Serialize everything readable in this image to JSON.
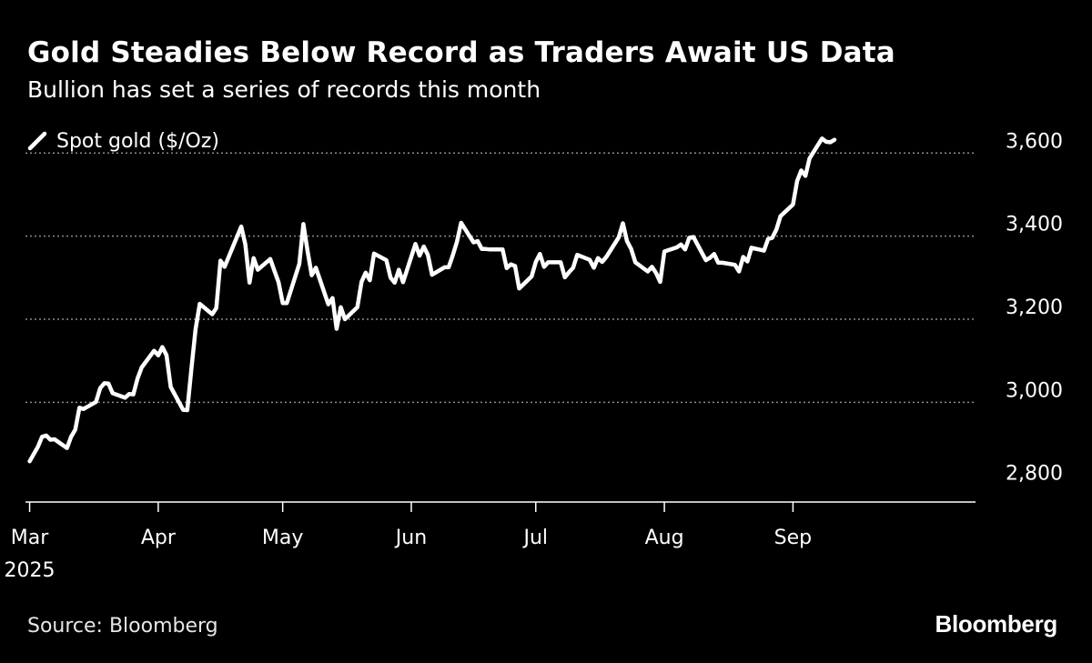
{
  "header": {
    "title": "Gold Steadies Below Record as Traders Await US Data",
    "subtitle": "Bullion has set a series of records this month"
  },
  "footer": {
    "source": "Source: Bloomberg",
    "brand": "Bloomberg"
  },
  "colors": {
    "background": "#000000",
    "line": "#ffffff",
    "grid": "#8c8c8c",
    "text": "#ffffff"
  },
  "chart_data": {
    "type": "line",
    "title": "Gold Steadies Below Record as Traders Await US Data",
    "subtitle": "Bullion has set a series of records this month",
    "legend": "top-left",
    "grid": true,
    "y_axis_side": "right",
    "ylim": [
      2760,
      3640
    ],
    "y_ticks": [
      {
        "value": 2800,
        "label": "2,800"
      },
      {
        "value": 3000,
        "label": "3,000"
      },
      {
        "value": 3200,
        "label": "3,200"
      },
      {
        "value": 3400,
        "label": "3,400"
      },
      {
        "value": 3600,
        "label": "3,600"
      }
    ],
    "gridlines": [
      3000,
      3200,
      3400,
      3600
    ],
    "xlim": [
      "2025-02-28",
      "2025-10-15"
    ],
    "x_ticks": [
      {
        "date": "2025-03-01",
        "label": "Mar",
        "sublabel": "2025"
      },
      {
        "date": "2025-04-01",
        "label": "Apr"
      },
      {
        "date": "2025-05-01",
        "label": "May"
      },
      {
        "date": "2025-06-01",
        "label": "Jun"
      },
      {
        "date": "2025-07-01",
        "label": "Jul"
      },
      {
        "date": "2025-08-01",
        "label": "Aug"
      },
      {
        "date": "2025-09-01",
        "label": "Sep"
      }
    ],
    "series": [
      {
        "name": "Spot gold ($/Oz)",
        "color": "#ffffff",
        "points": [
          [
            "2025-03-01",
            2858
          ],
          [
            "2025-03-03",
            2893
          ],
          [
            "2025-03-04",
            2917
          ],
          [
            "2025-03-05",
            2920
          ],
          [
            "2025-03-06",
            2910
          ],
          [
            "2025-03-07",
            2911
          ],
          [
            "2025-03-10",
            2890
          ],
          [
            "2025-03-11",
            2917
          ],
          [
            "2025-03-12",
            2934
          ],
          [
            "2025-03-13",
            2987
          ],
          [
            "2025-03-14",
            2984
          ],
          [
            "2025-03-17",
            3001
          ],
          [
            "2025-03-18",
            3034
          ],
          [
            "2025-03-19",
            3046
          ],
          [
            "2025-03-20",
            3045
          ],
          [
            "2025-03-21",
            3022
          ],
          [
            "2025-03-24",
            3011
          ],
          [
            "2025-03-25",
            3020
          ],
          [
            "2025-03-26",
            3019
          ],
          [
            "2025-03-27",
            3057
          ],
          [
            "2025-03-28",
            3084
          ],
          [
            "2025-03-31",
            3124
          ],
          [
            "2025-04-01",
            3113
          ],
          [
            "2025-04-02",
            3133
          ],
          [
            "2025-04-03",
            3113
          ],
          [
            "2025-04-04",
            3037
          ],
          [
            "2025-04-07",
            2982
          ],
          [
            "2025-04-08",
            2981
          ],
          [
            "2025-04-09",
            3082
          ],
          [
            "2025-04-10",
            3176
          ],
          [
            "2025-04-11",
            3237
          ],
          [
            "2025-04-14",
            3212
          ],
          [
            "2025-04-15",
            3227
          ],
          [
            "2025-04-16",
            3341
          ],
          [
            "2025-04-17",
            3326
          ],
          [
            "2025-04-21",
            3423
          ],
          [
            "2025-04-22",
            3380
          ],
          [
            "2025-04-23",
            3288
          ],
          [
            "2025-04-24",
            3347
          ],
          [
            "2025-04-25",
            3319
          ],
          [
            "2025-04-28",
            3345
          ],
          [
            "2025-04-29",
            3317
          ],
          [
            "2025-04-30",
            3289
          ],
          [
            "2025-05-01",
            3239
          ],
          [
            "2025-05-02",
            3239
          ],
          [
            "2025-05-05",
            3333
          ],
          [
            "2025-05-06",
            3429
          ],
          [
            "2025-05-07",
            3364
          ],
          [
            "2025-05-08",
            3306
          ],
          [
            "2025-05-09",
            3324
          ],
          [
            "2025-05-12",
            3236
          ],
          [
            "2025-05-13",
            3251
          ],
          [
            "2025-05-14",
            3177
          ],
          [
            "2025-05-15",
            3229
          ],
          [
            "2025-05-16",
            3200
          ],
          [
            "2025-05-19",
            3229
          ],
          [
            "2025-05-20",
            3290
          ],
          [
            "2025-05-21",
            3312
          ],
          [
            "2025-05-22",
            3294
          ],
          [
            "2025-05-23",
            3358
          ],
          [
            "2025-05-26",
            3342
          ],
          [
            "2025-05-27",
            3300
          ],
          [
            "2025-05-28",
            3288
          ],
          [
            "2025-05-29",
            3319
          ],
          [
            "2025-05-30",
            3289
          ],
          [
            "2025-06-02",
            3381
          ],
          [
            "2025-06-03",
            3353
          ],
          [
            "2025-06-04",
            3375
          ],
          [
            "2025-06-05",
            3355
          ],
          [
            "2025-06-06",
            3307
          ],
          [
            "2025-06-09",
            3325
          ],
          [
            "2025-06-10",
            3325
          ],
          [
            "2025-06-11",
            3354
          ],
          [
            "2025-06-12",
            3386
          ],
          [
            "2025-06-13",
            3432
          ],
          [
            "2025-06-16",
            3385
          ],
          [
            "2025-06-17",
            3388
          ],
          [
            "2025-06-18",
            3369
          ],
          [
            "2025-06-19",
            3369
          ],
          [
            "2025-06-20",
            3368
          ],
          [
            "2025-06-23",
            3368
          ],
          [
            "2025-06-24",
            3323
          ],
          [
            "2025-06-25",
            3332
          ],
          [
            "2025-06-26",
            3328
          ],
          [
            "2025-06-27",
            3274
          ],
          [
            "2025-06-30",
            3303
          ],
          [
            "2025-07-01",
            3338
          ],
          [
            "2025-07-02",
            3357
          ],
          [
            "2025-07-03",
            3326
          ],
          [
            "2025-07-04",
            3337
          ],
          [
            "2025-07-07",
            3337
          ],
          [
            "2025-07-08",
            3301
          ],
          [
            "2025-07-09",
            3313
          ],
          [
            "2025-07-10",
            3324
          ],
          [
            "2025-07-11",
            3355
          ],
          [
            "2025-07-14",
            3343
          ],
          [
            "2025-07-15",
            3324
          ],
          [
            "2025-07-16",
            3347
          ],
          [
            "2025-07-17",
            3338
          ],
          [
            "2025-07-18",
            3350
          ],
          [
            "2025-07-21",
            3397
          ],
          [
            "2025-07-22",
            3431
          ],
          [
            "2025-07-23",
            3388
          ],
          [
            "2025-07-24",
            3369
          ],
          [
            "2025-07-25",
            3337
          ],
          [
            "2025-07-28",
            3315
          ],
          [
            "2025-07-29",
            3326
          ],
          [
            "2025-07-30",
            3311
          ],
          [
            "2025-07-31",
            3290
          ],
          [
            "2025-08-01",
            3363
          ],
          [
            "2025-08-04",
            3373
          ],
          [
            "2025-08-05",
            3380
          ],
          [
            "2025-08-06",
            3368
          ],
          [
            "2025-08-07",
            3396
          ],
          [
            "2025-08-08",
            3398
          ],
          [
            "2025-08-11",
            3342
          ],
          [
            "2025-08-12",
            3348
          ],
          [
            "2025-08-13",
            3357
          ],
          [
            "2025-08-14",
            3336
          ],
          [
            "2025-08-15",
            3336
          ],
          [
            "2025-08-18",
            3331
          ],
          [
            "2025-08-19",
            3315
          ],
          [
            "2025-08-20",
            3350
          ],
          [
            "2025-08-21",
            3339
          ],
          [
            "2025-08-22",
            3372
          ],
          [
            "2025-08-25",
            3365
          ],
          [
            "2025-08-26",
            3393
          ],
          [
            "2025-08-27",
            3396
          ],
          [
            "2025-08-28",
            3416
          ],
          [
            "2025-08-29",
            3448
          ],
          [
            "2025-09-01",
            3476
          ],
          [
            "2025-09-02",
            3533
          ],
          [
            "2025-09-03",
            3558
          ],
          [
            "2025-09-04",
            3545
          ],
          [
            "2025-09-05",
            3587
          ],
          [
            "2025-09-08",
            3635
          ],
          [
            "2025-09-09",
            3627
          ],
          [
            "2025-09-10",
            3626
          ],
          [
            "2025-09-11",
            3632
          ]
        ]
      }
    ]
  }
}
